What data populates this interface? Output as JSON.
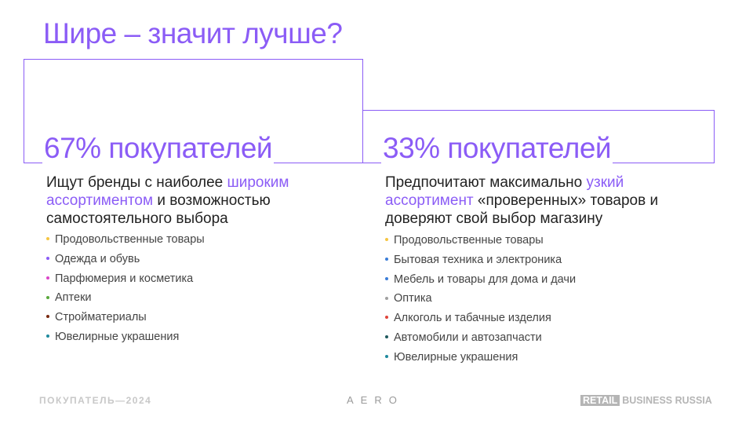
{
  "title": "Шире – значит лучше?",
  "left": {
    "percent": "67% покупателей",
    "desc_pre": "Ищут бренды с наиболее ",
    "desc_hl": "широким ассортиментом",
    "desc_post": " и возможностью самостоятельного выбора",
    "items": [
      {
        "label": "Продовольственные товары",
        "color": "#f5c542"
      },
      {
        "label": "Одежда и обувь",
        "color": "#8b5cf6"
      },
      {
        "label": "Парфюмерия и косметика",
        "color": "#d946c8"
      },
      {
        "label": "Аптеки",
        "color": "#5aa83c"
      },
      {
        "label": "Стройматериалы",
        "color": "#7a2a10"
      },
      {
        "label": "Ювелирные украшения",
        "color": "#1f8a9e"
      }
    ]
  },
  "right": {
    "percent": "33% покупателей",
    "desc_pre": "Предпочитают максимально ",
    "desc_hl": "узкий ассортимент",
    "desc_post": " «проверенных» товаров и доверяют свой выбор магазину",
    "items": [
      {
        "label": "Продовольственные товары",
        "color": "#f5c542"
      },
      {
        "label": "Бытовая техника и электроника",
        "color": "#3b7dd8"
      },
      {
        "label": "Мебель и товары для дома и дачи",
        "color": "#3b7dd8"
      },
      {
        "label": "Оптика",
        "color": "#a0a0a0"
      },
      {
        "label": "Алкоголь и табачные изделия",
        "color": "#e0443a"
      },
      {
        "label": "Автомобили и автозапчасти",
        "color": "#1f5a5e"
      },
      {
        "label": "Ювелирные украшения",
        "color": "#1f8a9e"
      }
    ]
  },
  "footer": {
    "left": "ПОКУПАТЕЛЬ—2024",
    "center": "AERO",
    "right_tag": "RETAIL",
    "right_text": "BUSINESS RUSSIA"
  }
}
